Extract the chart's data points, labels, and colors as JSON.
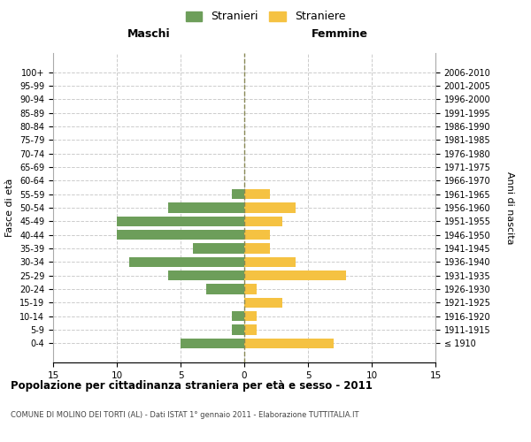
{
  "age_groups": [
    "100+",
    "95-99",
    "90-94",
    "85-89",
    "80-84",
    "75-79",
    "70-74",
    "65-69",
    "60-64",
    "55-59",
    "50-54",
    "45-49",
    "40-44",
    "35-39",
    "30-34",
    "25-29",
    "20-24",
    "15-19",
    "10-14",
    "5-9",
    "0-4"
  ],
  "birth_years": [
    "≤ 1910",
    "1911-1915",
    "1916-1920",
    "1921-1925",
    "1926-1930",
    "1931-1935",
    "1936-1940",
    "1941-1945",
    "1946-1950",
    "1951-1955",
    "1956-1960",
    "1961-1965",
    "1966-1970",
    "1971-1975",
    "1976-1980",
    "1981-1985",
    "1986-1990",
    "1991-1995",
    "1996-2000",
    "2001-2005",
    "2006-2010"
  ],
  "maschi": [
    0,
    0,
    0,
    0,
    0,
    0,
    0,
    0,
    0,
    1,
    6,
    10,
    10,
    4,
    9,
    6,
    3,
    0,
    1,
    1,
    5
  ],
  "femmine": [
    0,
    0,
    0,
    0,
    0,
    0,
    0,
    0,
    0,
    2,
    4,
    3,
    2,
    2,
    4,
    8,
    1,
    3,
    1,
    1,
    7
  ],
  "color_maschi": "#6d9e5a",
  "color_femmine": "#f5c242",
  "title": "Popolazione per cittadinanza straniera per età e sesso - 2011",
  "subtitle": "COMUNE DI MOLINO DEI TORTI (AL) - Dati ISTAT 1° gennaio 2011 - Elaborazione TUTTITALIA.IT",
  "ylabel_left": "Fasce di età",
  "ylabel_right": "Anni di nascita",
  "xlabel_left": "Maschi",
  "xlabel_right": "Femmine",
  "legend_maschi": "Stranieri",
  "legend_femmine": "Straniere",
  "xlim": 15,
  "bg_color": "#ffffff",
  "grid_color": "#cccccc",
  "bar_height": 0.75
}
